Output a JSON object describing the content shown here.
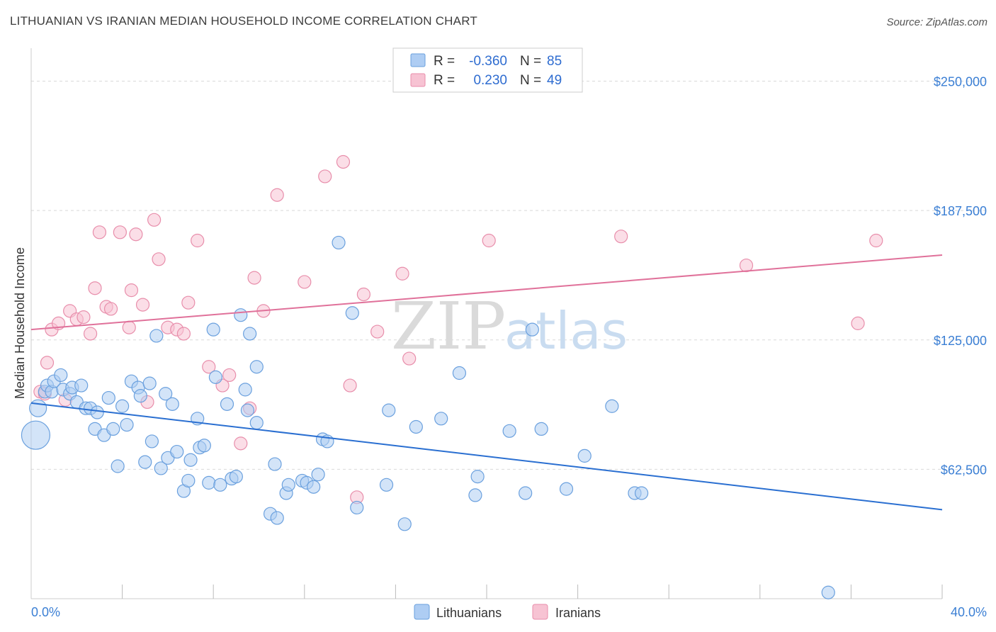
{
  "title": "LITHUANIAN VS IRANIAN MEDIAN HOUSEHOLD INCOME CORRELATION CHART",
  "source": "Source: ZipAtlas.com",
  "watermark": {
    "zip": "ZIP",
    "atlas": "atlas"
  },
  "legend": {
    "r_label": "R =",
    "n_label": "N =",
    "rows": [
      {
        "r": "-0.360",
        "n": "85",
        "color": "#aecdf3"
      },
      {
        "r": "0.230",
        "n": "49",
        "color": "#f7bfd0"
      }
    ]
  },
  "bottom_legend": [
    "Lithuanians",
    "Iranians"
  ],
  "colors": {
    "blue_fill": "#aecdf3",
    "blue_stroke": "#6aa0de",
    "blue_line": "#2a6fd1",
    "pink_fill": "#f7c3d3",
    "pink_stroke": "#e88eab",
    "pink_line": "#e0719a",
    "grid": "#d9d9d9",
    "tick_text": "#3b7fd4"
  },
  "chart_data": {
    "type": "scatter",
    "title": "LITHUANIAN VS IRANIAN MEDIAN HOUSEHOLD INCOME CORRELATION CHART",
    "xlabel": "",
    "ylabel": "Median Household Income",
    "xlim": [
      0,
      40
    ],
    "ylim": [
      0,
      262500
    ],
    "x_tick_labels": [
      "0.0%",
      "40.0%"
    ],
    "y_ticks": [
      {
        "value": 62500,
        "label": "$62,500"
      },
      {
        "value": 125000,
        "label": "$125,000"
      },
      {
        "value": 187500,
        "label": "$187,500"
      },
      {
        "value": 250000,
        "label": "$250,000"
      }
    ],
    "grid": "horizontal dashed",
    "legend_position": "top-center",
    "series": [
      {
        "name": "Lithuanians",
        "r": -0.36,
        "n": 85,
        "trend": {
          "x0": 0,
          "y0": 94500,
          "x1": 40,
          "y1": 43000
        },
        "points": [
          [
            0.3,
            92000,
            "large"
          ],
          [
            0.6,
            100000
          ],
          [
            0.7,
            103000
          ],
          [
            0.9,
            100000
          ],
          [
            1.0,
            105000
          ],
          [
            1.3,
            108000
          ],
          [
            1.4,
            101000
          ],
          [
            1.7,
            99000
          ],
          [
            1.8,
            102000
          ],
          [
            2.0,
            95000
          ],
          [
            2.2,
            103000
          ],
          [
            2.4,
            92000
          ],
          [
            2.6,
            92000
          ],
          [
            2.9,
            90000
          ],
          [
            2.8,
            82000
          ],
          [
            3.2,
            79000
          ],
          [
            3.4,
            97000
          ],
          [
            3.6,
            82000
          ],
          [
            3.8,
            64000
          ],
          [
            4.0,
            93000
          ],
          [
            4.2,
            84000
          ],
          [
            4.4,
            105000
          ],
          [
            4.7,
            102000
          ],
          [
            4.8,
            98000
          ],
          [
            5.0,
            66000
          ],
          [
            5.2,
            104000
          ],
          [
            5.3,
            76000
          ],
          [
            5.7,
            63000
          ],
          [
            5.9,
            99000
          ],
          [
            6.0,
            68000
          ],
          [
            6.2,
            94000
          ],
          [
            5.5,
            127000
          ],
          [
            6.4,
            71000
          ],
          [
            6.7,
            52000
          ],
          [
            6.9,
            57000
          ],
          [
            7.0,
            67000
          ],
          [
            7.3,
            87000
          ],
          [
            7.4,
            73000
          ],
          [
            7.6,
            74000
          ],
          [
            7.8,
            56000
          ],
          [
            8.0,
            130000
          ],
          [
            8.1,
            107000
          ],
          [
            8.3,
            55000
          ],
          [
            8.6,
            94000
          ],
          [
            8.8,
            58000
          ],
          [
            9.0,
            59000
          ],
          [
            9.2,
            137000
          ],
          [
            9.4,
            101000
          ],
          [
            9.5,
            91000
          ],
          [
            9.6,
            128000
          ],
          [
            9.9,
            112000
          ],
          [
            9.9,
            85000
          ],
          [
            10.5,
            41000
          ],
          [
            10.8,
            39000
          ],
          [
            10.7,
            65000
          ],
          [
            11.2,
            51000
          ],
          [
            11.3,
            55000
          ],
          [
            11.9,
            57000
          ],
          [
            12.1,
            56000
          ],
          [
            12.4,
            54000
          ],
          [
            12.6,
            60000
          ],
          [
            12.8,
            77000
          ],
          [
            13.0,
            76000
          ],
          [
            13.5,
            172000
          ],
          [
            14.1,
            138000
          ],
          [
            14.3,
            44000
          ],
          [
            15.6,
            55000
          ],
          [
            15.7,
            91000
          ],
          [
            16.4,
            36000
          ],
          [
            16.9,
            83000
          ],
          [
            18.0,
            87000
          ],
          [
            18.8,
            109000
          ],
          [
            19.5,
            50000
          ],
          [
            19.6,
            59000
          ],
          [
            21.0,
            81000
          ],
          [
            21.7,
            51000
          ],
          [
            22.0,
            130000
          ],
          [
            22.4,
            82000
          ],
          [
            23.5,
            53000
          ],
          [
            24.3,
            69000
          ],
          [
            25.5,
            93000
          ],
          [
            26.5,
            51000
          ],
          [
            26.8,
            51000
          ],
          [
            35.0,
            3000
          ],
          [
            0.2,
            79000,
            "xlarge"
          ]
        ]
      },
      {
        "name": "Iranians",
        "r": 0.23,
        "n": 49,
        "trend": {
          "x0": 0,
          "y0": 130000,
          "x1": 40,
          "y1": 166000
        },
        "points": [
          [
            0.4,
            100000
          ],
          [
            0.6,
            99000
          ],
          [
            0.7,
            114000
          ],
          [
            0.9,
            130000
          ],
          [
            1.2,
            133000
          ],
          [
            1.5,
            96000
          ],
          [
            1.7,
            139000
          ],
          [
            2.0,
            135000
          ],
          [
            2.3,
            136000
          ],
          [
            2.6,
            128000
          ],
          [
            2.8,
            150000
          ],
          [
            3.0,
            177000
          ],
          [
            3.3,
            141000
          ],
          [
            3.5,
            140000
          ],
          [
            3.9,
            177000
          ],
          [
            4.3,
            131000
          ],
          [
            4.4,
            149000
          ],
          [
            4.6,
            176000
          ],
          [
            4.9,
            142000
          ],
          [
            5.1,
            95000
          ],
          [
            5.4,
            183000
          ],
          [
            5.6,
            164000
          ],
          [
            6.0,
            131000
          ],
          [
            6.4,
            130000
          ],
          [
            6.7,
            128000
          ],
          [
            6.9,
            143000
          ],
          [
            7.3,
            173000
          ],
          [
            7.8,
            112000
          ],
          [
            8.4,
            103000
          ],
          [
            8.7,
            108000
          ],
          [
            9.2,
            75000
          ],
          [
            9.6,
            92000
          ],
          [
            9.8,
            155000
          ],
          [
            10.2,
            139000
          ],
          [
            10.8,
            195000
          ],
          [
            12.0,
            153000
          ],
          [
            12.9,
            204000
          ],
          [
            13.7,
            211000
          ],
          [
            14.0,
            103000
          ],
          [
            14.3,
            49000
          ],
          [
            14.6,
            147000
          ],
          [
            15.2,
            129000
          ],
          [
            16.3,
            157000
          ],
          [
            16.6,
            116000
          ],
          [
            20.1,
            173000
          ],
          [
            25.9,
            175000
          ],
          [
            31.4,
            161000
          ],
          [
            36.3,
            133000
          ],
          [
            37.1,
            173000
          ]
        ]
      }
    ]
  }
}
